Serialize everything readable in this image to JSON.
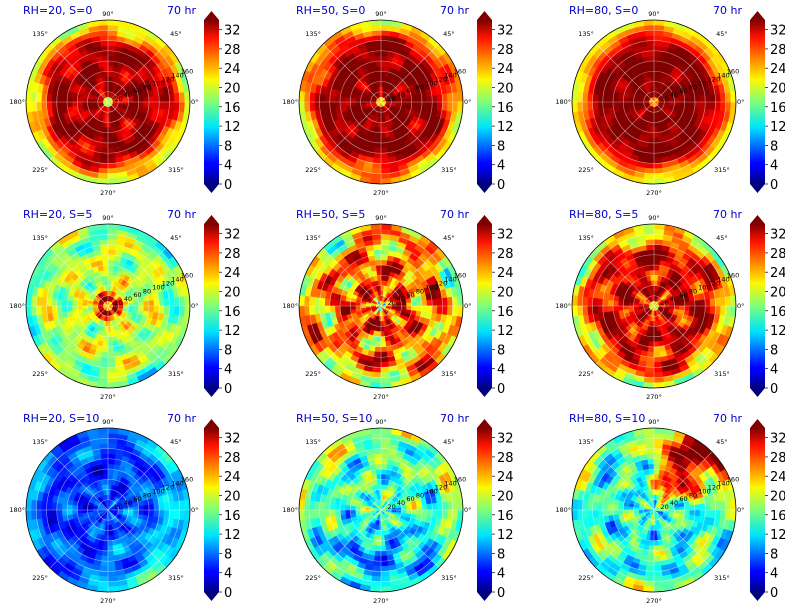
{
  "chart_data": [
    {
      "type": "heatmap",
      "polar": true,
      "title_left": "RH=20, S=0",
      "title_right": "70 hr",
      "angle_ticks": [
        "0°",
        "45°",
        "90°",
        "135°",
        "180°",
        "225°",
        "270°",
        "315°"
      ],
      "radial_ticks": [
        "20",
        "40",
        "60",
        "80",
        "100",
        "120",
        "140",
        "160"
      ],
      "radial_range": [
        0,
        160
      ],
      "colorbar_ticks": [
        "0",
        "4",
        "8",
        "12",
        "16",
        "20",
        "24",
        "28",
        "32"
      ],
      "colorbar_range": [
        0,
        34
      ],
      "colormap": "jet",
      "pattern": {
        "base": 33,
        "edge": 19,
        "coreR": 9,
        "coreV": 13,
        "ringCenter": -1,
        "ringAmp": 0,
        "noise": 3
      }
    },
    {
      "type": "heatmap",
      "polar": true,
      "title_left": "RH=50, S=0",
      "title_right": "70 hr",
      "angle_ticks": [
        "0°",
        "45°",
        "90°",
        "135°",
        "180°",
        "225°",
        "270°",
        "315°"
      ],
      "radial_ticks": [
        "20",
        "40",
        "60",
        "80",
        "100",
        "120",
        "140",
        "160"
      ],
      "radial_range": [
        0,
        160
      ],
      "colorbar_ticks": [
        "0",
        "4",
        "8",
        "12",
        "16",
        "20",
        "24",
        "28",
        "32"
      ],
      "colorbar_range": [
        0,
        34
      ],
      "colormap": "jet",
      "pattern": {
        "base": 34,
        "edge": 21,
        "coreR": 6,
        "coreV": 13,
        "ringCenter": -1,
        "ringAmp": 0,
        "noise": 3
      }
    },
    {
      "type": "heatmap",
      "polar": true,
      "title_left": "RH=80, S=0",
      "title_right": "70 hr",
      "angle_ticks": [
        "0°",
        "45°",
        "90°",
        "135°",
        "180°",
        "225°",
        "270°",
        "315°"
      ],
      "radial_ticks": [
        "20",
        "40",
        "60",
        "80",
        "100",
        "120",
        "140",
        "160"
      ],
      "radial_range": [
        0,
        160
      ],
      "colorbar_ticks": [
        "0",
        "4",
        "8",
        "12",
        "16",
        "20",
        "24",
        "28",
        "32"
      ],
      "colorbar_range": [
        0,
        34
      ],
      "colormap": "jet",
      "pattern": {
        "base": 34,
        "edge": 20,
        "coreR": 5,
        "coreV": 14,
        "ringCenter": -1,
        "ringAmp": 0,
        "noise": 2
      }
    },
    {
      "type": "heatmap",
      "polar": true,
      "title_left": "RH=20, S=5",
      "title_right": "70 hr",
      "angle_ticks": [
        "0°",
        "45°",
        "90°",
        "135°",
        "180°",
        "225°",
        "270°",
        "315°"
      ],
      "radial_ticks": [
        "20",
        "40",
        "60",
        "80",
        "100",
        "120",
        "140",
        "160"
      ],
      "radial_range": [
        0,
        160
      ],
      "colorbar_ticks": [
        "0",
        "4",
        "8",
        "12",
        "16",
        "20",
        "24",
        "28",
        "32"
      ],
      "colorbar_range": [
        0,
        34
      ],
      "colormap": "jet",
      "pattern": {
        "base": 19,
        "edge": 16,
        "coreR": 7,
        "coreV": 13,
        "ringCenter": 15,
        "ringAmp": 15,
        "noise": 4
      }
    },
    {
      "type": "heatmap",
      "polar": true,
      "title_left": "RH=50, S=5",
      "title_right": "70 hr",
      "angle_ticks": [
        "0°",
        "45°",
        "90°",
        "135°",
        "180°",
        "225°",
        "270°",
        "315°"
      ],
      "radial_ticks": [
        "20",
        "40",
        "60",
        "80",
        "100",
        "120",
        "140",
        "160"
      ],
      "radial_range": [
        0,
        160
      ],
      "colorbar_ticks": [
        "0",
        "4",
        "8",
        "12",
        "16",
        "20",
        "24",
        "28",
        "32"
      ],
      "colorbar_range": [
        0,
        34
      ],
      "colormap": "jet",
      "pattern": {
        "base": 26,
        "edge": 21,
        "coreR": 6,
        "coreV": 12,
        "ringCenter": 40,
        "ringAmp": 6,
        "noise": 7
      }
    },
    {
      "type": "heatmap",
      "polar": true,
      "title_left": "RH=80, S=5",
      "title_right": "70 hr",
      "angle_ticks": [
        "0°",
        "45°",
        "90°",
        "135°",
        "180°",
        "225°",
        "270°",
        "315°"
      ],
      "radial_ticks": [
        "20",
        "40",
        "60",
        "80",
        "100",
        "120",
        "140",
        "160"
      ],
      "radial_range": [
        0,
        160
      ],
      "colorbar_ticks": [
        "0",
        "4",
        "8",
        "12",
        "16",
        "20",
        "24",
        "28",
        "32"
      ],
      "colorbar_range": [
        0,
        34
      ],
      "colormap": "jet",
      "pattern": {
        "base": 31,
        "edge": 19,
        "coreR": 6,
        "coreV": 13,
        "ringCenter": -1,
        "ringAmp": 0,
        "noise": 5
      }
    },
    {
      "type": "heatmap",
      "polar": true,
      "title_left": "RH=20, S=10",
      "title_right": "70 hr",
      "angle_ticks": [
        "0°",
        "45°",
        "90°",
        "135°",
        "180°",
        "225°",
        "270°",
        "315°"
      ],
      "radial_ticks": [
        "20",
        "40",
        "60",
        "80",
        "100",
        "120",
        "140",
        "160"
      ],
      "radial_range": [
        0,
        160
      ],
      "colorbar_ticks": [
        "0",
        "4",
        "8",
        "12",
        "16",
        "20",
        "24",
        "28",
        "32"
      ],
      "colorbar_range": [
        0,
        34
      ],
      "colormap": "jet",
      "pattern": {
        "base": 6,
        "edge": 9,
        "coreR": 0,
        "coreV": 6,
        "ringCenter": -1,
        "ringAmp": 0,
        "noise": 3,
        "eastBoost": 5
      }
    },
    {
      "type": "heatmap",
      "polar": true,
      "title_left": "RH=50, S=10",
      "title_right": "70 hr",
      "angle_ticks": [
        "0°",
        "45°",
        "90°",
        "135°",
        "180°",
        "225°",
        "270°",
        "315°"
      ],
      "radial_ticks": [
        "20",
        "40",
        "60",
        "80",
        "100",
        "120",
        "140",
        "160"
      ],
      "radial_range": [
        0,
        160
      ],
      "colorbar_ticks": [
        "0",
        "4",
        "8",
        "12",
        "16",
        "20",
        "24",
        "28",
        "32"
      ],
      "colorbar_range": [
        0,
        34
      ],
      "colormap": "jet",
      "pattern": {
        "base": 15,
        "edge": 19,
        "coreR": 0,
        "coreV": 8,
        "ringCenter": -1,
        "ringAmp": 0,
        "noise": 5,
        "southDip": 6
      }
    },
    {
      "type": "heatmap",
      "polar": true,
      "title_left": "RH=80, S=10",
      "title_right": "70 hr",
      "angle_ticks": [
        "0°",
        "45°",
        "90°",
        "135°",
        "180°",
        "225°",
        "270°",
        "315°"
      ],
      "radial_ticks": [
        "20",
        "40",
        "60",
        "80",
        "100",
        "120",
        "140",
        "160"
      ],
      "radial_range": [
        0,
        160
      ],
      "colorbar_ticks": [
        "0",
        "4",
        "8",
        "12",
        "16",
        "20",
        "24",
        "28",
        "32"
      ],
      "colorbar_range": [
        0,
        34
      ],
      "colormap": "jet",
      "pattern": {
        "base": 14,
        "edge": 16,
        "coreR": 0,
        "coreV": 8,
        "ringCenter": -1,
        "ringAmp": 0,
        "noise": 5,
        "neHot": 18
      }
    }
  ]
}
